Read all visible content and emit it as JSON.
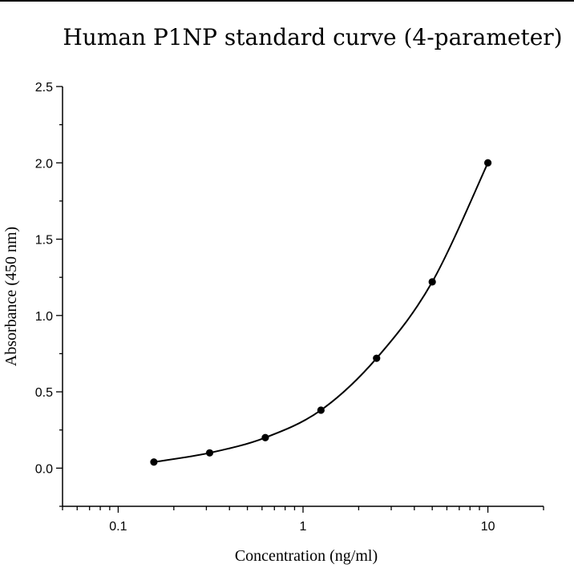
{
  "chart_data": {
    "type": "scatter",
    "title": "Human P1NP standard curve (4-parameter)",
    "xlabel": "Concentration (ng/ml)",
    "ylabel": "Absorbance (450 nm)",
    "x_scale": "log",
    "xlim": [
      0.05,
      20
    ],
    "ylim": [
      -0.25,
      2.5
    ],
    "x_ticks": [
      "0.1",
      "1",
      "10"
    ],
    "y_ticks": [
      "0.0",
      "0.5",
      "1.0",
      "1.5",
      "2.0",
      "2.5"
    ],
    "grid": false,
    "legend": "none",
    "series": [
      {
        "marker": "circle",
        "x": [
          0.156,
          0.3125,
          0.625,
          1.25,
          2.5,
          5,
          10
        ],
        "y": [
          0.04,
          0.1,
          0.2,
          0.38,
          0.72,
          1.22,
          2.0
        ]
      }
    ],
    "fit_curve": {
      "model": "4-parameter"
    }
  }
}
